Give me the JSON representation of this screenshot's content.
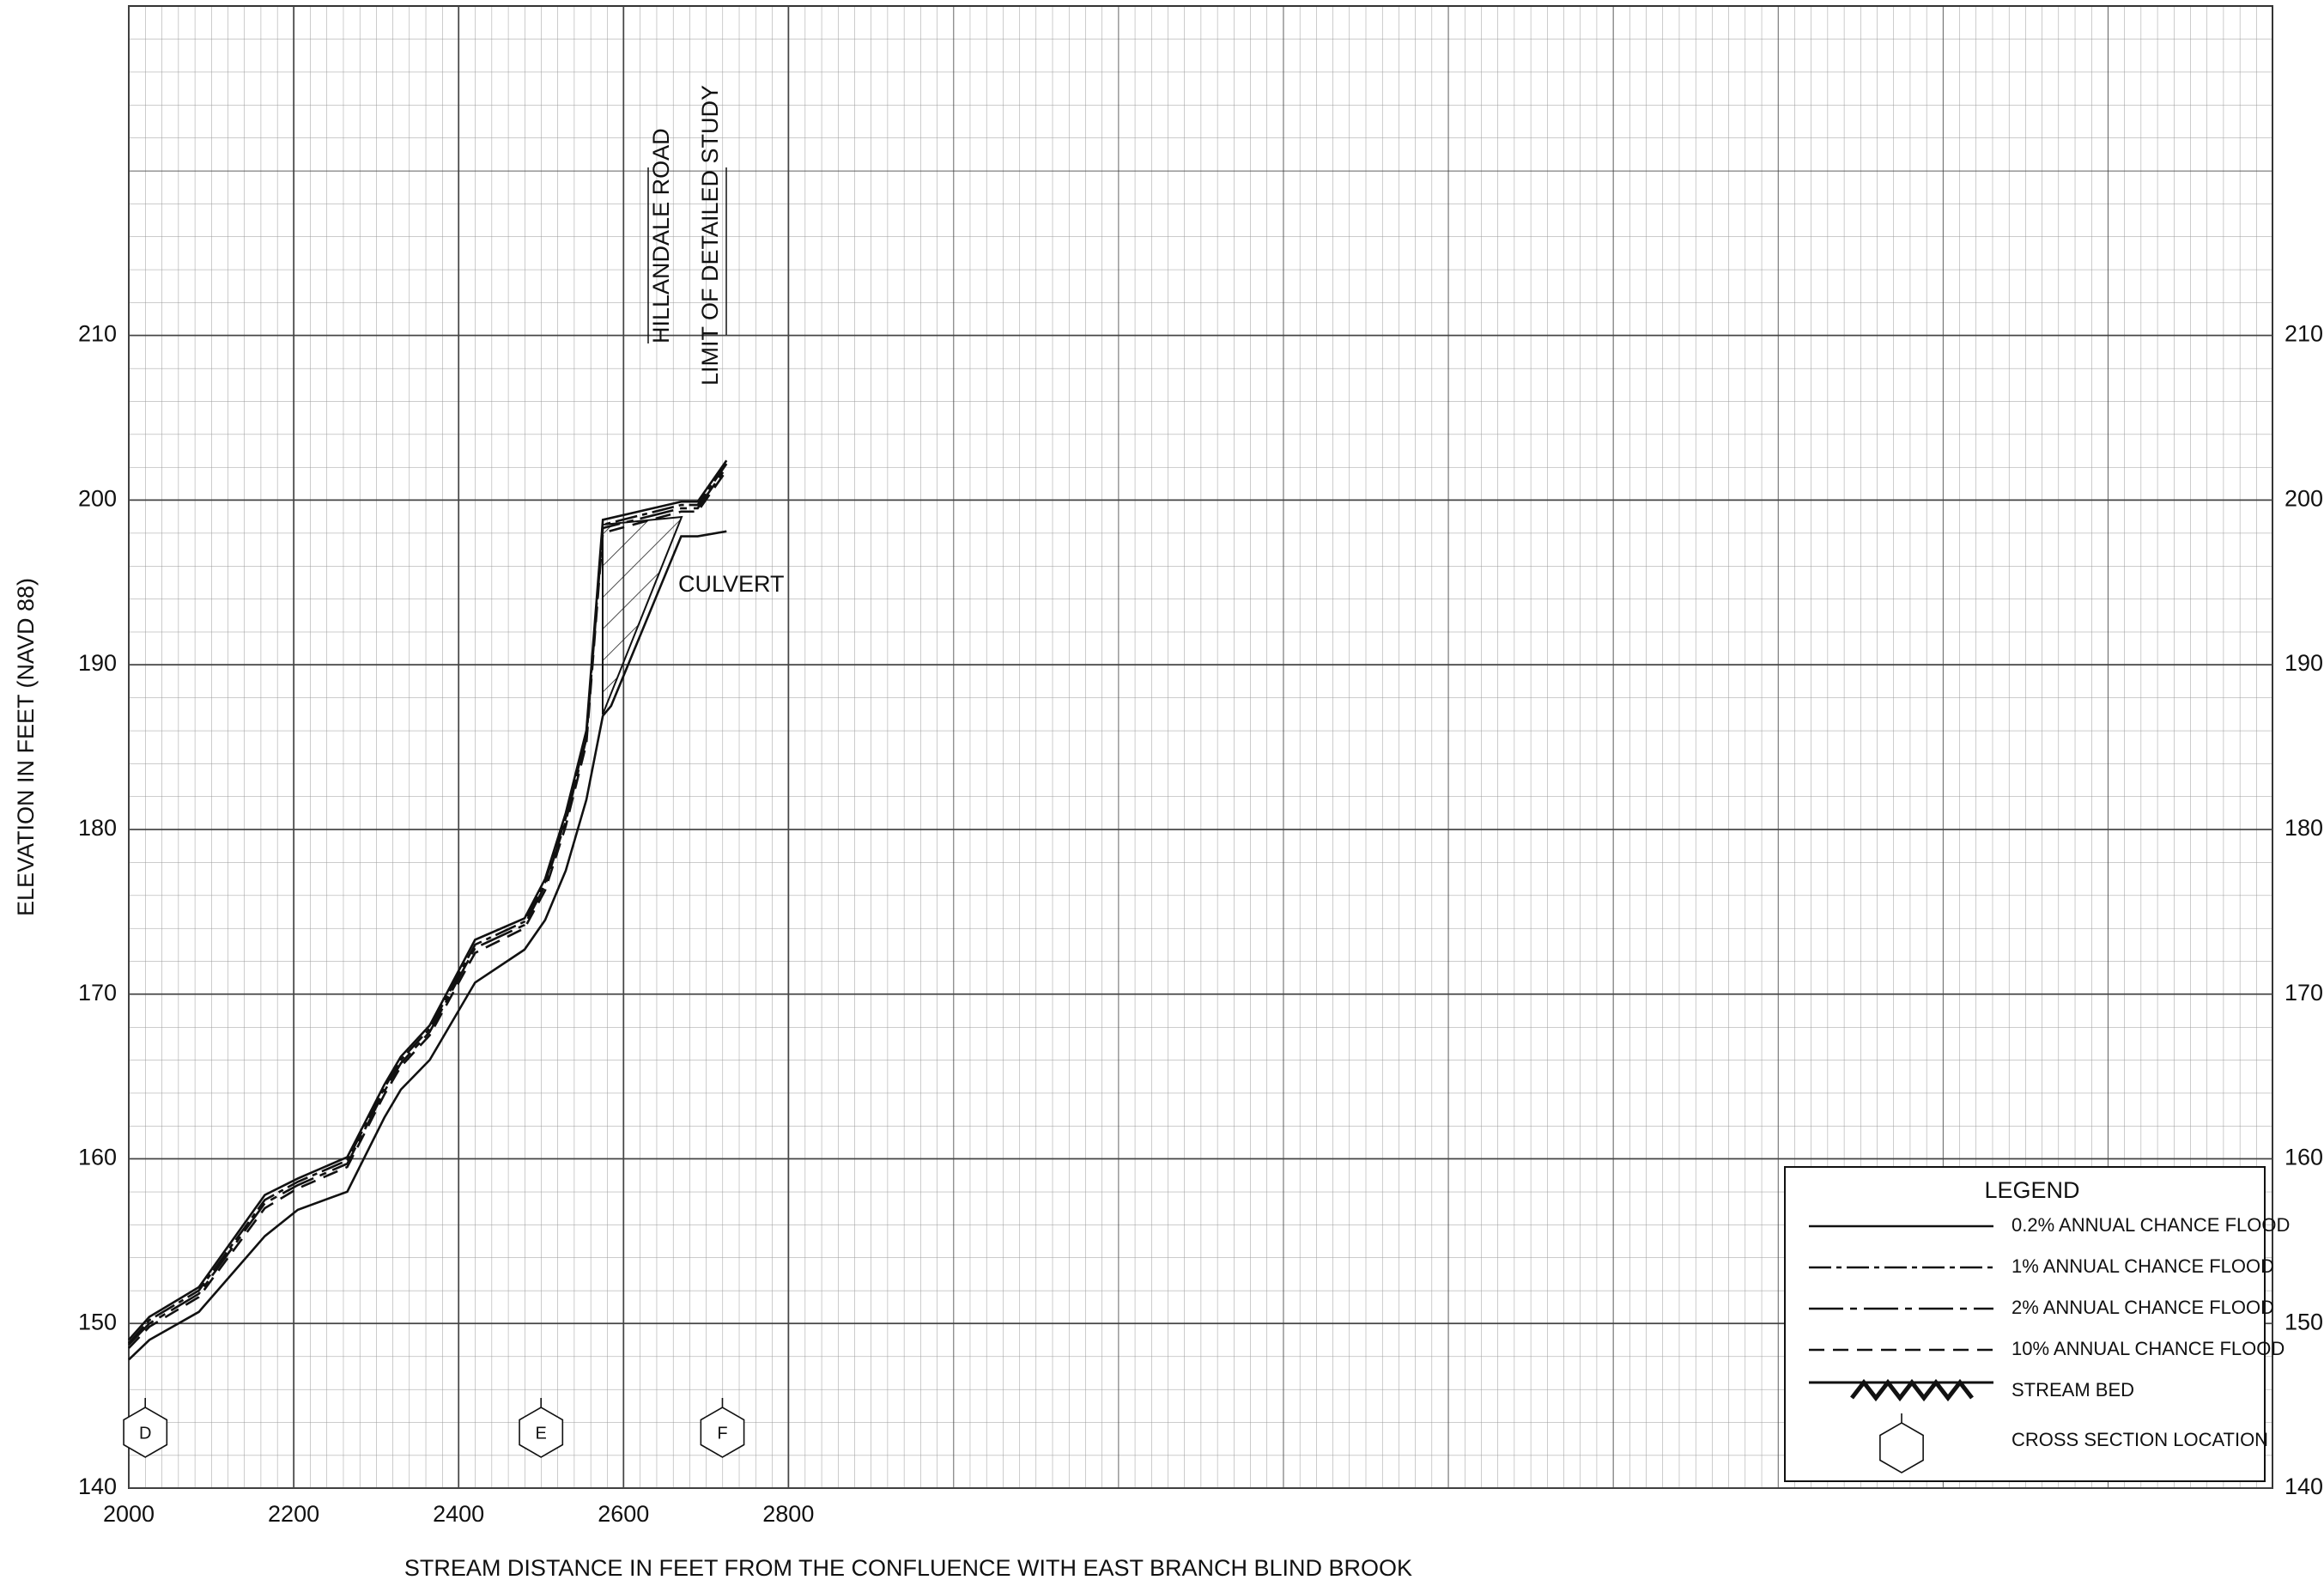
{
  "chart_data": {
    "type": "line",
    "x_label": "STREAM DISTANCE IN FEET FROM THE CONFLUENCE WITH EAST BRANCH BLIND BROOK",
    "y_label": "ELEVATION IN FEET (NAVD 88)",
    "xlim": [
      2000,
      4600
    ],
    "xticks": [
      2000,
      2200,
      2400,
      2600,
      2800
    ],
    "ylim": [
      140,
      230
    ],
    "yticks": [
      140,
      150,
      160,
      170,
      180,
      190,
      200,
      210
    ],
    "grid": true,
    "series": [
      {
        "name": "0.2% ANNUAL CHANCE FLOOD",
        "color": "#111111",
        "x": [
          2000,
          2025,
          2085,
          2165,
          2205,
          2265,
          2310,
          2330,
          2365,
          2420,
          2480,
          2505,
          2530,
          2555,
          2575,
          2670,
          2690,
          2725
        ],
        "values": [
          149.0,
          150.4,
          152.2,
          157.8,
          158.8,
          160.1,
          164.5,
          166.2,
          168.1,
          173.3,
          174.6,
          177.0,
          181.0,
          186.0,
          198.8,
          199.9,
          199.9,
          202.4
        ]
      },
      {
        "name": "1% ANNUAL CHANCE FLOOD",
        "color": "#111111",
        "x": [
          2000,
          2025,
          2085,
          2165,
          2205,
          2265,
          2310,
          2330,
          2365,
          2420,
          2480,
          2505,
          2530,
          2555,
          2575,
          2670,
          2690,
          2725
        ],
        "values": [
          148.8,
          150.2,
          152.0,
          157.5,
          158.6,
          159.9,
          164.3,
          166.0,
          167.9,
          173.0,
          174.4,
          176.8,
          180.7,
          185.7,
          198.5,
          199.7,
          199.7,
          202.2
        ]
      },
      {
        "name": "2% ANNUAL CHANCE FLOOD",
        "color": "#111111",
        "x": [
          2000,
          2025,
          2085,
          2165,
          2205,
          2265,
          2310,
          2330,
          2365,
          2420,
          2480,
          2505,
          2530,
          2555,
          2575,
          2670,
          2690,
          2725
        ],
        "values": [
          148.7,
          150.0,
          151.8,
          157.3,
          158.4,
          159.7,
          164.1,
          165.8,
          167.7,
          172.8,
          174.2,
          176.6,
          180.5,
          185.5,
          198.3,
          199.5,
          199.5,
          202.0
        ]
      },
      {
        "name": "10% ANNUAL CHANCE FLOOD",
        "color": "#111111",
        "x": [
          2000,
          2025,
          2085,
          2165,
          2205,
          2265,
          2310,
          2330,
          2365,
          2420,
          2480,
          2505,
          2530,
          2555,
          2575,
          2670,
          2690,
          2725
        ],
        "values": [
          148.5,
          149.8,
          151.6,
          157.0,
          158.2,
          159.5,
          163.9,
          165.6,
          167.5,
          172.5,
          174.0,
          176.3,
          180.2,
          185.2,
          198.0,
          199.3,
          199.3,
          201.8
        ]
      },
      {
        "name": "STREAM BED",
        "color": "#111111",
        "x": [
          2000,
          2025,
          2085,
          2165,
          2205,
          2265,
          2310,
          2330,
          2365,
          2420,
          2480,
          2505,
          2530,
          2555,
          2575,
          2585,
          2670,
          2690,
          2725
        ],
        "values": [
          147.8,
          149.0,
          150.7,
          155.3,
          156.9,
          158.0,
          162.5,
          164.2,
          166.0,
          170.7,
          172.7,
          174.5,
          177.5,
          181.8,
          186.9,
          187.5,
          197.8,
          197.8,
          198.1
        ]
      }
    ],
    "cross_sections": [
      {
        "label": "D",
        "x": 2020
      },
      {
        "label": "E",
        "x": 2500
      },
      {
        "label": "F",
        "x": 2720
      }
    ],
    "annotations": {
      "road": "HILLANDALE ROAD",
      "limit": "LIMIT OF DETAILED STUDY",
      "culvert": "CULVERT"
    },
    "legend_title": "LEGEND",
    "cross_section_legend": "CROSS SECTION LOCATION"
  }
}
